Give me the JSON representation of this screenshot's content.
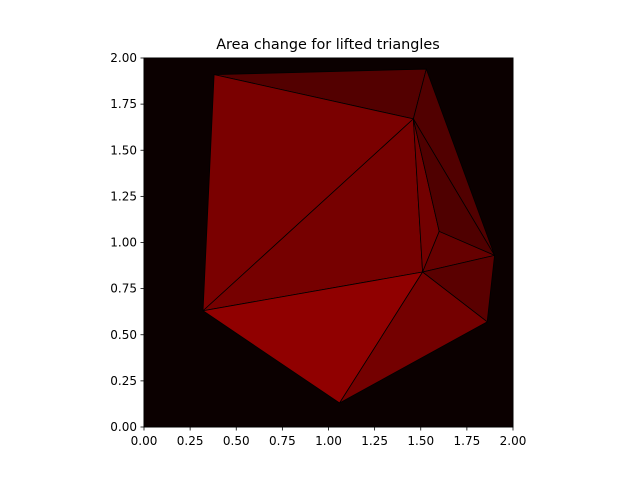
{
  "chart_data": {
    "type": "tripcolor",
    "title": "Area change for lifted triangles",
    "xlabel": "",
    "ylabel": "",
    "xlim": [
      0,
      2
    ],
    "ylim": [
      0,
      2
    ],
    "aspect": "equal",
    "grid": false,
    "background_color": "#0b0000",
    "edge_color": "#000000",
    "x_ticks": [
      "0.00",
      "0.25",
      "0.50",
      "0.75",
      "1.00",
      "1.25",
      "1.50",
      "1.75",
      "2.00"
    ],
    "y_ticks": [
      "0.00",
      "0.25",
      "0.50",
      "0.75",
      "1.00",
      "1.25",
      "1.50",
      "1.75",
      "2.00"
    ],
    "vertices": [
      {
        "id": "A",
        "x": 0.38,
        "y": 1.91
      },
      {
        "id": "B",
        "x": 1.53,
        "y": 1.94
      },
      {
        "id": "C",
        "x": 1.46,
        "y": 1.67
      },
      {
        "id": "D",
        "x": 0.32,
        "y": 0.63
      },
      {
        "id": "E",
        "x": 1.51,
        "y": 0.84
      },
      {
        "id": "F",
        "x": 1.06,
        "y": 0.13
      },
      {
        "id": "G",
        "x": 1.6,
        "y": 1.06
      },
      {
        "id": "H",
        "x": 1.9,
        "y": 0.93
      },
      {
        "id": "I",
        "x": 1.86,
        "y": 0.57
      }
    ],
    "triangles": [
      {
        "v": [
          "A",
          "B",
          "C"
        ],
        "color": "#530000"
      },
      {
        "v": [
          "B",
          "H",
          "C"
        ],
        "color": "#510000"
      },
      {
        "v": [
          "A",
          "C",
          "D"
        ],
        "color": "#7a0000"
      },
      {
        "v": [
          "C",
          "E",
          "D"
        ],
        "color": "#760000"
      },
      {
        "v": [
          "D",
          "E",
          "F"
        ],
        "color": "#900000"
      },
      {
        "v": [
          "C",
          "G",
          "E"
        ],
        "color": "#720000"
      },
      {
        "v": [
          "C",
          "H",
          "G"
        ],
        "color": "#4f0000"
      },
      {
        "v": [
          "G",
          "H",
          "E"
        ],
        "color": "#660000"
      },
      {
        "v": [
          "E",
          "H",
          "I"
        ],
        "color": "#5a0000"
      },
      {
        "v": [
          "E",
          "I",
          "F"
        ],
        "color": "#740000"
      }
    ]
  }
}
